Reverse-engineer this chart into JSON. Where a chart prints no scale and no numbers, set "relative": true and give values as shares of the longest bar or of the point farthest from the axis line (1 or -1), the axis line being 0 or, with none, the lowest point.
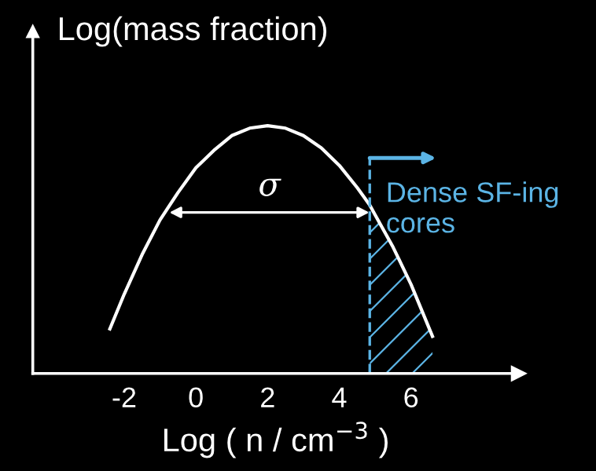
{
  "chart_data": {
    "type": "line",
    "relative": true,
    "ylabel": "Log(mass fraction)",
    "xlabel": "Log ( n / cm$^{−3}$ )",
    "xlim": [
      -4.55,
      9
    ],
    "xticks": [
      -2,
      0,
      2,
      4,
      6
    ],
    "series": [
      {
        "color": "#ffffff",
        "x": [
          -2.4,
          -2,
          -1.5,
          -1,
          -0.5,
          0,
          0.5,
          1,
          1.5,
          2,
          2.5,
          3,
          3.5,
          4,
          4.5,
          4.85,
          5,
          5.5,
          6,
          6.6
        ],
        "values": [
          0.18,
          0.32,
          0.48,
          0.62,
          0.73,
          0.83,
          0.9,
          0.96,
          0.99,
          1,
          0.99,
          0.96,
          0.91,
          0.84,
          0.75,
          0.68,
          0.64,
          0.51,
          0.36,
          0.15
        ]
      },
      {
        "type": "area",
        "color": "#5bb4e5",
        "x": [
          4.85,
          5,
          5.5,
          6,
          6.6
        ],
        "values": [
          0.68,
          0.64,
          0.51,
          0.36,
          0.15
        ]
      }
    ],
    "ref_lines": [
      {
        "axis": "x",
        "value": 4.85,
        "label": "Dense SF-ing cores",
        "color": "#5bb4e5",
        "line_style": "dashed"
      }
    ],
    "annotations": [
      "σ"
    ],
    "grid": false,
    "marker": "none",
    "line_style": "solid"
  }
}
